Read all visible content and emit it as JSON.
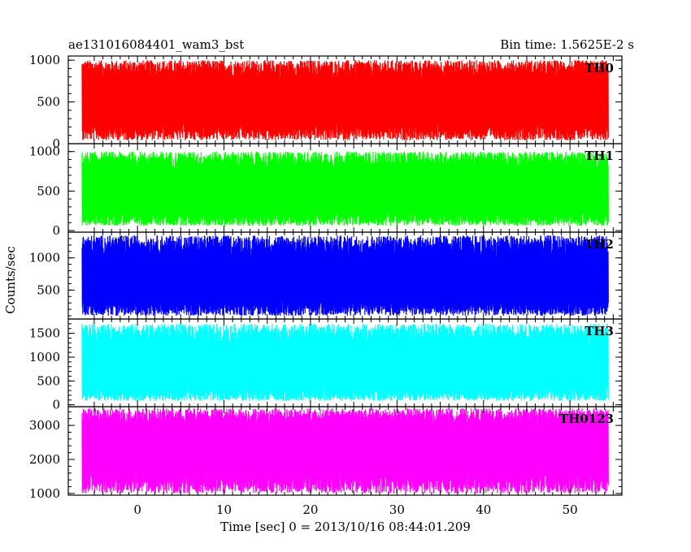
{
  "header": {
    "title": "ae131016084401_wam3_bst",
    "bin_time": "Bin time: 1.5625E-2 s"
  },
  "chart_data": {
    "type": "line",
    "title": "ae131016084401_wam3_bst",
    "subtitle": "Bin time: 1.5625E-2 s",
    "xlabel": "Time [sec] 0 = 2013/10/16 08:44:01.209",
    "ylabel": "Counts/sec",
    "xlim": [
      -8,
      56
    ],
    "xticks": [
      0,
      10,
      20,
      30,
      40,
      50
    ],
    "xtick_labels": [
      "0",
      "10",
      "20",
      "30",
      "40",
      "50"
    ],
    "legend": "none",
    "grid": false,
    "panels": [
      {
        "name": "TH0",
        "color": "#ff0000",
        "ylim": [
          0,
          1050
        ],
        "yticks": [
          0,
          500,
          1000
        ],
        "ytick_labels": [
          "0",
          "500",
          "1000"
        ],
        "mean": 500,
        "noise_range": [
          40,
          1000
        ],
        "x_range": [
          -8,
          56
        ]
      },
      {
        "name": "TH1",
        "color": "#00ff00",
        "ylim": [
          -20,
          1100
        ],
        "yticks": [
          0,
          500,
          1000
        ],
        "ytick_labels": [
          "0",
          "500",
          "1000"
        ],
        "mean": 480,
        "noise_range": [
          60,
          1000
        ],
        "x_range": [
          -8,
          56
        ]
      },
      {
        "name": "TH2",
        "color": "#0000ff",
        "ylim": [
          50,
          1400
        ],
        "yticks": [
          500,
          1000
        ],
        "ytick_labels": [
          "500",
          "1000"
        ],
        "mean": 620,
        "noise_range": [
          100,
          1350
        ],
        "x_range": [
          -8,
          56
        ]
      },
      {
        "name": "TH3",
        "color": "#00ffff",
        "ylim": [
          -40,
          1800
        ],
        "yticks": [
          0,
          500,
          1000,
          1500
        ],
        "ytick_labels": [
          "0",
          "500",
          "1000",
          "1500"
        ],
        "mean": 750,
        "noise_range": [
          80,
          1700
        ],
        "x_range": [
          -8,
          56
        ]
      },
      {
        "name": "TH0123",
        "color": "#ff00ff",
        "ylim": [
          950,
          3550
        ],
        "yticks": [
          1000,
          2000,
          3000
        ],
        "ytick_labels": [
          "1000",
          "2000",
          "3000"
        ],
        "mean": 2350,
        "noise_range": [
          1000,
          3500
        ],
        "x_range": [
          -8,
          56
        ]
      }
    ]
  }
}
